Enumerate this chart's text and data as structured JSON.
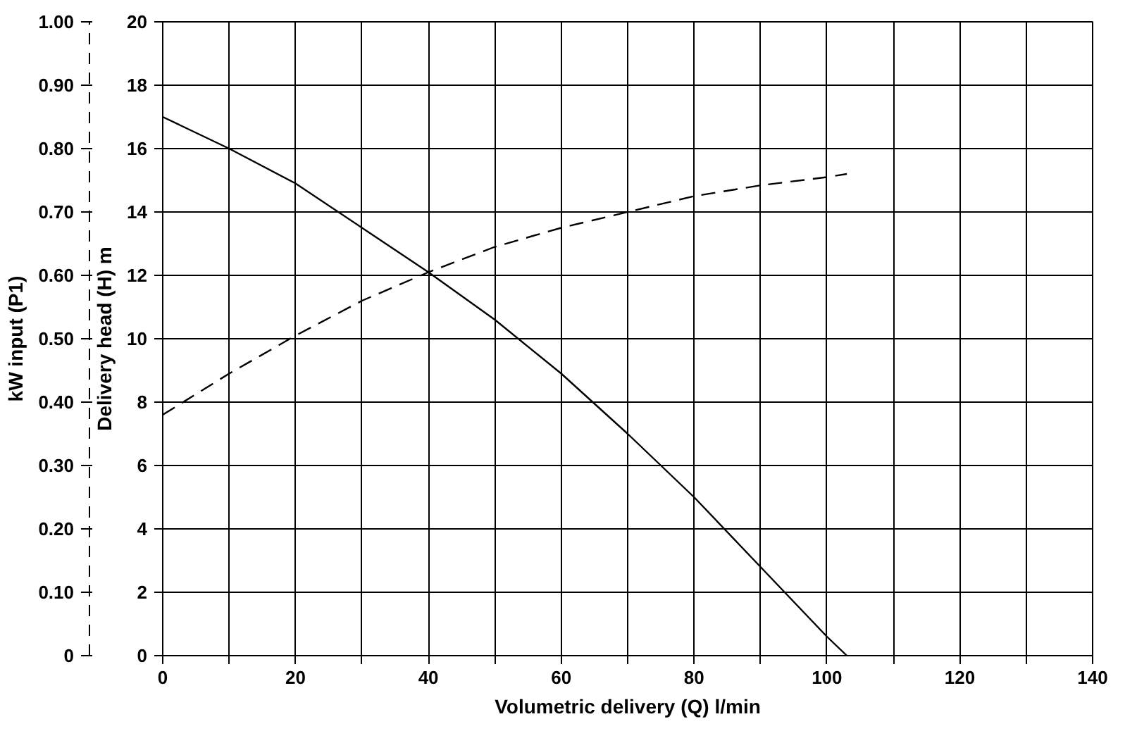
{
  "chart_data": {
    "type": "line",
    "xlabel": "Volumetric delivery (Q) l/min",
    "ylabel": "Delivery head (H) m",
    "y2label": "kW input (P1)",
    "xlim": [
      0,
      140
    ],
    "xticks": [
      0,
      {
        "value": 10,
        "label": null
      },
      20,
      {
        "value": 30,
        "label": null
      },
      40,
      {
        "value": 50,
        "label": null
      },
      60,
      {
        "value": 70,
        "label": null
      },
      80,
      {
        "value": 90,
        "label": null
      },
      100,
      {
        "value": 110,
        "label": null
      },
      120,
      {
        "value": 130,
        "label": null
      },
      140
    ],
    "ylim": [
      0,
      20
    ],
    "yticks": [
      0,
      2,
      4,
      6,
      8,
      10,
      12,
      14,
      16,
      18,
      20
    ],
    "y2lim": [
      0,
      1
    ],
    "y2ticks": [
      0,
      {
        "value": 0.1,
        "label": "0.10"
      },
      {
        "value": 0.2,
        "label": "0.20"
      },
      {
        "value": 0.3,
        "label": "0.30"
      },
      {
        "value": 0.4,
        "label": "0.40"
      },
      {
        "value": 0.5,
        "label": "0.50"
      },
      {
        "value": 0.6,
        "label": "0.60"
      },
      {
        "value": 0.7,
        "label": "0.70"
      },
      {
        "value": 0.8,
        "label": "0.80"
      },
      {
        "value": 0.9,
        "label": "0.90"
      },
      {
        "value": 1,
        "label": "1.00"
      }
    ],
    "grid": true,
    "marker": "none",
    "series": [
      {
        "color": "#000000",
        "line_style": "solid",
        "x": [
          0,
          10,
          20,
          30,
          40,
          50,
          60,
          70,
          80,
          90,
          100,
          103
        ],
        "values": [
          17,
          16,
          14.9,
          13.5,
          12.1,
          10.6,
          8.9,
          7.0,
          5.0,
          2.8,
          0.6,
          0
        ]
      },
      {
        "color": "#000000",
        "line_style": "dashed",
        "axis": "y2",
        "x": [
          0,
          10,
          20,
          30,
          40,
          50,
          60,
          70,
          80,
          90,
          100,
          103
        ],
        "values": [
          0.38,
          0.445,
          0.505,
          0.56,
          0.605,
          0.645,
          0.675,
          0.7,
          0.725,
          0.742,
          0.755,
          0.76
        ]
      }
    ]
  }
}
